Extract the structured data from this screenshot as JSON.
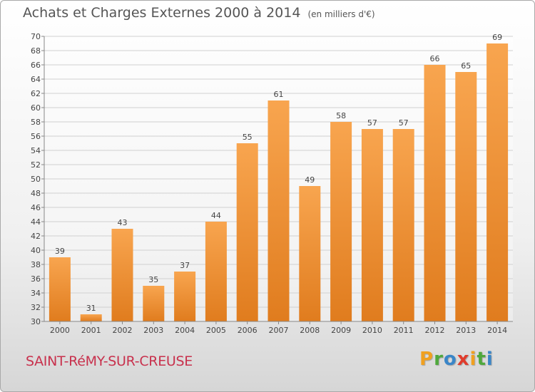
{
  "title": "Achats et Charges Externes 2000 à 2014",
  "unit_note": "(en milliers d'€)",
  "footer": {
    "commune": "SAINT-RéMY-SUR-CREUSE",
    "brand": "Proxiti"
  },
  "brand_letters": [
    {
      "ch": "P",
      "color": "#f0a020"
    },
    {
      "ch": "r",
      "color": "#4fa83c"
    },
    {
      "ch": "o",
      "color": "#3a86c8"
    },
    {
      "ch": "x",
      "color": "#e03c2c"
    },
    {
      "ch": "i",
      "color": "#f0a020"
    },
    {
      "ch": "t",
      "color": "#4fa83c"
    },
    {
      "ch": "i",
      "color": "#3a86c8"
    }
  ],
  "colors": {
    "bar_light": "#f8a54f",
    "bar_dark": "#e07c1e",
    "title": "#555555",
    "commune": "#c8314d",
    "grid": "#d0d0d0"
  },
  "chart_data": {
    "type": "bar",
    "categories": [
      "2000",
      "2001",
      "2002",
      "2003",
      "2004",
      "2005",
      "2006",
      "2007",
      "2008",
      "2009",
      "2010",
      "2011",
      "2012",
      "2013",
      "2014"
    ],
    "values": [
      39,
      31,
      43,
      35,
      37,
      44,
      55,
      61,
      49,
      58,
      57,
      57,
      66,
      65,
      69
    ],
    "title": "Achats et Charges Externes 2000 à 2014",
    "ylabel": "(en milliers d'€)",
    "ylim": [
      30,
      70
    ],
    "yticks": [
      30,
      32,
      34,
      36,
      38,
      40,
      42,
      44,
      46,
      48,
      50,
      52,
      54,
      56,
      58,
      60,
      62,
      64,
      66,
      68,
      70
    ],
    "grid": true,
    "data_labels": true
  }
}
